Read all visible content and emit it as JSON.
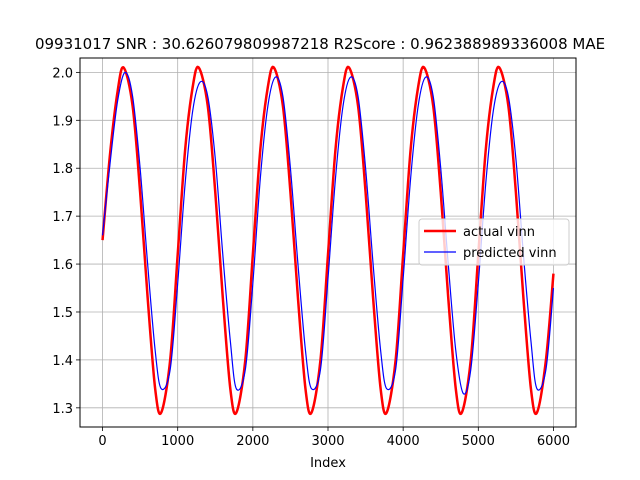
{
  "chart_data": {
    "type": "line",
    "title": "09931017  SNR : 30.626079809987218 R2Score : 0.962388989336008 MAE",
    "xlabel": "Index",
    "ylabel": "",
    "xlim": [
      -300,
      6300
    ],
    "ylim": [
      1.26,
      2.03
    ],
    "xticks": [
      0,
      1000,
      2000,
      3000,
      4000,
      5000,
      6000
    ],
    "yticks": [
      1.3,
      1.4,
      1.5,
      1.6,
      1.7,
      1.8,
      1.9,
      2.0
    ],
    "grid": true,
    "legend_position": "center-right",
    "series": [
      {
        "name": "actual vinn",
        "color": "#ff0000",
        "x": [
          0,
          100,
          200,
          280,
          400,
          500,
          600,
          700,
          780,
          900,
          1000,
          1100,
          1200,
          1280,
          1400,
          1500,
          1600,
          1700,
          1780,
          1900,
          2000,
          2100,
          2200,
          2280,
          2400,
          2500,
          2600,
          2700,
          2780,
          2900,
          3000,
          3100,
          3200,
          3280,
          3400,
          3500,
          3600,
          3700,
          3780,
          3900,
          4000,
          4100,
          4200,
          4280,
          4400,
          4500,
          4600,
          4700,
          4780,
          4900,
          5000,
          5100,
          5200,
          5280,
          5400,
          5500,
          5600,
          5700,
          5780,
          5900,
          6000
        ],
        "values": [
          1.65,
          1.83,
          1.96,
          2.01,
          1.93,
          1.75,
          1.53,
          1.34,
          1.29,
          1.4,
          1.62,
          1.84,
          1.97,
          2.01,
          1.93,
          1.75,
          1.53,
          1.34,
          1.29,
          1.4,
          1.62,
          1.84,
          1.97,
          2.01,
          1.93,
          1.75,
          1.53,
          1.34,
          1.29,
          1.4,
          1.62,
          1.84,
          1.97,
          2.01,
          1.93,
          1.75,
          1.53,
          1.34,
          1.29,
          1.4,
          1.62,
          1.84,
          1.97,
          2.01,
          1.93,
          1.75,
          1.53,
          1.34,
          1.29,
          1.4,
          1.62,
          1.84,
          1.97,
          2.01,
          1.93,
          1.75,
          1.53,
          1.34,
          1.29,
          1.4,
          1.58
        ]
      },
      {
        "name": "predicted vinn",
        "color": "#0000ff",
        "x": [
          0,
          100,
          200,
          300,
          400,
          500,
          600,
          700,
          780,
          900,
          1000,
          1100,
          1200,
          1300,
          1400,
          1500,
          1600,
          1700,
          1780,
          1900,
          2000,
          2100,
          2200,
          2300,
          2400,
          2500,
          2600,
          2700,
          2780,
          2900,
          3000,
          3100,
          3200,
          3300,
          3400,
          3500,
          3600,
          3700,
          3780,
          3900,
          4000,
          4100,
          4200,
          4300,
          4400,
          4500,
          4600,
          4700,
          4800,
          4900,
          5000,
          5100,
          5200,
          5300,
          5400,
          5500,
          5600,
          5700,
          5780,
          5900,
          6000
        ],
        "values": [
          1.66,
          1.81,
          1.94,
          2.0,
          1.95,
          1.8,
          1.6,
          1.42,
          1.34,
          1.38,
          1.56,
          1.77,
          1.92,
          1.98,
          1.95,
          1.82,
          1.62,
          1.44,
          1.34,
          1.38,
          1.56,
          1.78,
          1.93,
          1.99,
          1.95,
          1.8,
          1.6,
          1.42,
          1.34,
          1.38,
          1.57,
          1.78,
          1.93,
          1.99,
          1.95,
          1.8,
          1.6,
          1.42,
          1.34,
          1.38,
          1.57,
          1.78,
          1.93,
          1.99,
          1.95,
          1.8,
          1.6,
          1.42,
          1.33,
          1.38,
          1.56,
          1.77,
          1.92,
          1.98,
          1.95,
          1.82,
          1.62,
          1.44,
          1.34,
          1.38,
          1.55
        ]
      }
    ]
  }
}
